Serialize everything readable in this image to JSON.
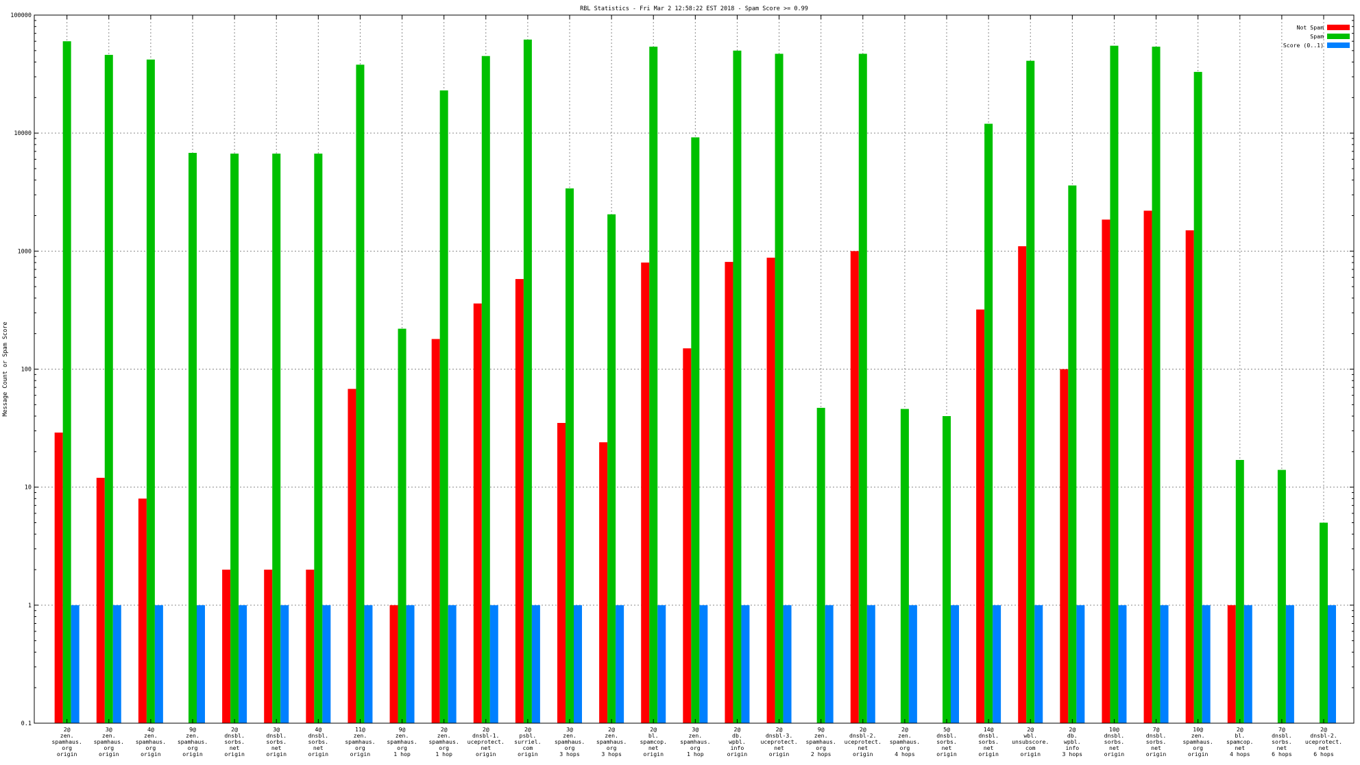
{
  "chart_data": {
    "type": "bar",
    "title": "RBL Statistics - Fri Mar  2 12:58:22 EST 2018 - Spam Score >= 0.99",
    "xlabel": "",
    "ylabel": "Message Count or Spam Score",
    "yscale": "log",
    "ylim": [
      0.1,
      100000
    ],
    "yticks": [
      "0.1",
      "1",
      "10",
      "100",
      "1000",
      "10000",
      "100000"
    ],
    "grid": true,
    "legend_position": "top-right",
    "categories": [
      [
        "2@",
        "zen.",
        "spamhaus.",
        "org",
        "origin"
      ],
      [
        "3@",
        "zen.",
        "spamhaus.",
        "org",
        "origin"
      ],
      [
        "4@",
        "zen.",
        "spamhaus.",
        "org",
        "origin"
      ],
      [
        "9@",
        "zen.",
        "spamhaus.",
        "org",
        "origin"
      ],
      [
        "2@",
        "dnsbl.",
        "sorbs.",
        "net",
        "origin"
      ],
      [
        "3@",
        "dnsbl.",
        "sorbs.",
        "net",
        "origin"
      ],
      [
        "4@",
        "dnsbl.",
        "sorbs.",
        "net",
        "origin"
      ],
      [
        "11@",
        "zen.",
        "spamhaus.",
        "org",
        "origin"
      ],
      [
        "9@",
        "zen.",
        "spamhaus.",
        "org",
        "1 hop"
      ],
      [
        "2@",
        "zen.",
        "spamhaus.",
        "org",
        "1 hop"
      ],
      [
        "2@",
        "dnsbl-1.",
        "uceprotect.",
        "net",
        "origin"
      ],
      [
        "2@",
        "psbl.",
        "surriel.",
        "com",
        "origin"
      ],
      [
        "3@",
        "zen.",
        "spamhaus.",
        "org",
        "3 hops"
      ],
      [
        "2@",
        "zen.",
        "spamhaus.",
        "org",
        "3 hops"
      ],
      [
        "2@",
        "bl.",
        "spamcop.",
        "net",
        "origin"
      ],
      [
        "3@",
        "zen.",
        "spamhaus.",
        "org",
        "1 hop"
      ],
      [
        "2@",
        "db.",
        "wpbl.",
        "info",
        "origin"
      ],
      [
        "2@",
        "dnsbl-3.",
        "uceprotect.",
        "net",
        "origin"
      ],
      [
        "9@",
        "zen.",
        "spamhaus.",
        "org",
        "2 hops"
      ],
      [
        "2@",
        "dnsbl-2.",
        "uceprotect.",
        "net",
        "origin"
      ],
      [
        "2@",
        "zen.",
        "spamhaus.",
        "org",
        "4 hops"
      ],
      [
        "5@",
        "dnsbl.",
        "sorbs.",
        "net",
        "origin"
      ],
      [
        "14@",
        "dnsbl.",
        "sorbs.",
        "net",
        "origin"
      ],
      [
        "2@",
        "wbl.",
        "unsubscore.",
        "com",
        "origin"
      ],
      [
        "2@",
        "db.",
        "wpbl.",
        "info",
        "3 hops"
      ],
      [
        "10@",
        "dnsbl.",
        "sorbs.",
        "net",
        "origin"
      ],
      [
        "7@",
        "dnsbl.",
        "sorbs.",
        "net",
        "origin"
      ],
      [
        "10@",
        "zen.",
        "spamhaus.",
        "org",
        "origin"
      ],
      [
        "2@",
        "bl.",
        "spamcop.",
        "net",
        "4 hops"
      ],
      [
        "7@",
        "dnsbl.",
        "sorbs.",
        "net",
        "6 hops"
      ],
      [
        "2@",
        "dnsbl-2.",
        "uceprotect.",
        "net",
        "6 hops"
      ]
    ],
    "series": [
      {
        "name": "Not Spam",
        "color": "#ff0000",
        "values": [
          29,
          12,
          8,
          null,
          2,
          2,
          2,
          68,
          1,
          180,
          360,
          580,
          35,
          24,
          800,
          150,
          810,
          880,
          null,
          1000,
          null,
          null,
          320,
          1100,
          100,
          1850,
          2200,
          1500,
          1,
          null,
          null
        ]
      },
      {
        "name": "Spam",
        "color": "#00c000",
        "values": [
          60000,
          46000,
          42000,
          6800,
          6700,
          6700,
          6700,
          38000,
          220,
          23000,
          45000,
          62000,
          3400,
          2050,
          54000,
          9200,
          50000,
          47000,
          47,
          47000,
          46,
          40,
          12000,
          41000,
          3600,
          55000,
          54000,
          33000,
          17,
          14,
          5
        ]
      },
      {
        "name": "Score (0..1)",
        "color": "#0080ff",
        "values": [
          1,
          1,
          1,
          1,
          1,
          1,
          1,
          1,
          1,
          1,
          1,
          1,
          1,
          1,
          1,
          1,
          1,
          1,
          1,
          1,
          1,
          1,
          1,
          1,
          1,
          1,
          1,
          1,
          1,
          1,
          1
        ]
      }
    ]
  }
}
